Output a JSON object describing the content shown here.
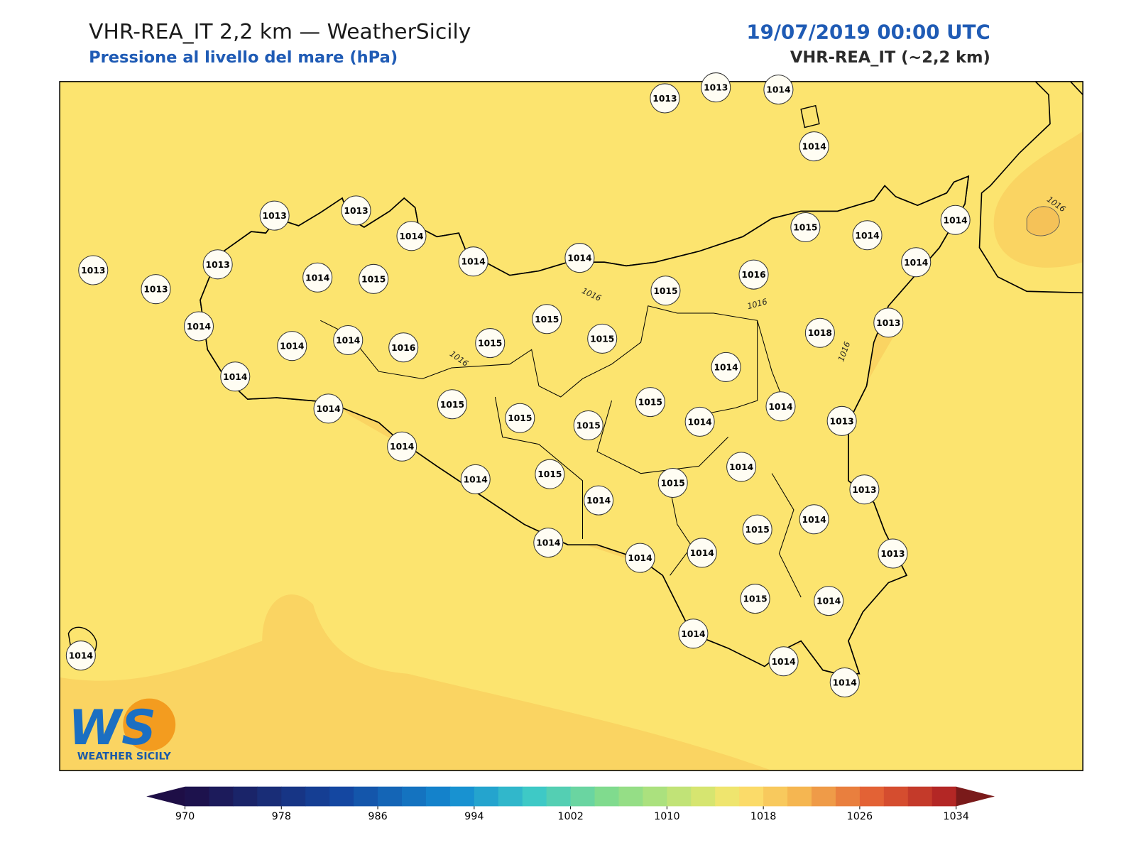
{
  "header": {
    "title": "VHR-REA_IT 2,2 km — WeatherSicily",
    "subtitle": "Pressione al livello del mare (hPa)",
    "datetime": "19/07/2019 00:00 UTC",
    "model": "VHR-REA_IT (~2,2 km)"
  },
  "stations": [
    1013,
    1013,
    1014,
    1014,
    1013,
    1013,
    1014,
    1014,
    1014,
    1013,
    1013,
    1013,
    1014,
    1015,
    1015,
    1014,
    1014,
    1014,
    1016,
    1015,
    1015,
    1015,
    1015,
    1016,
    1014,
    1014,
    1014,
    1014,
    1018,
    1013,
    1014,
    1014,
    1013,
    1015,
    1014,
    1015,
    1015,
    1015,
    1014,
    1014,
    1014,
    1015,
    1014,
    1015,
    1014,
    1013,
    1014,
    1015,
    1013,
    1014,
    1014,
    1014,
    1015,
    1014,
    1014,
    1014,
    1014,
    1014
  ],
  "contour_labels": [
    1016,
    1016,
    1016,
    1016,
    1016
  ],
  "colorbar": {
    "lim": [
      970,
      1034
    ],
    "ticks": [
      970,
      978,
      986,
      994,
      1002,
      1010,
      1018,
      1026,
      1034
    ]
  },
  "logo": {
    "mark": "WS",
    "text": "WEATHER SICILY"
  }
}
